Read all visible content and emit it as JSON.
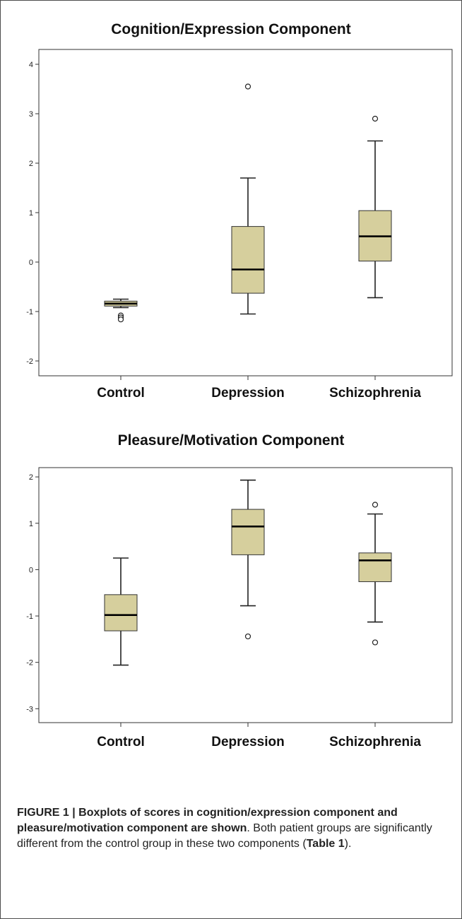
{
  "chart_data": [
    {
      "type": "box",
      "title": "Cognition/Expression Component",
      "xlabel": "",
      "ylabel": "",
      "ylim": [
        -2.3,
        4.3
      ],
      "yticks": [
        -2,
        -1,
        0,
        1,
        2,
        3,
        4
      ],
      "ytick_labels": [
        "-2",
        "-1",
        "0",
        "1",
        "2",
        "3",
        "4"
      ],
      "categories": [
        "Control",
        "Depression",
        "Schizophrenia"
      ],
      "box_color": "#d6cf9d",
      "boxes": [
        {
          "category": "Control",
          "whisker_low": -0.92,
          "q1": -0.89,
          "median": -0.84,
          "q3": -0.79,
          "whisker_high": -0.75,
          "outliers": [
            -1.08,
            -1.12,
            -1.16
          ]
        },
        {
          "category": "Depression",
          "whisker_low": -1.05,
          "q1": -0.63,
          "median": -0.15,
          "q3": 0.72,
          "whisker_high": 1.7,
          "outliers": [
            3.55
          ]
        },
        {
          "category": "Schizophrenia",
          "whisker_low": -0.72,
          "q1": 0.02,
          "median": 0.52,
          "q3": 1.04,
          "whisker_high": 2.45,
          "outliers": [
            2.9
          ]
        }
      ]
    },
    {
      "type": "box",
      "title": "Pleasure/Motivation Component",
      "xlabel": "",
      "ylabel": "",
      "ylim": [
        -3.3,
        2.2
      ],
      "yticks": [
        -3,
        -2,
        -1,
        0,
        1,
        2
      ],
      "ytick_labels": [
        "-3",
        "-2",
        "-1",
        "0",
        "1",
        "2"
      ],
      "categories": [
        "Control",
        "Depression",
        "Schizophrenia"
      ],
      "box_color": "#d6cf9d",
      "boxes": [
        {
          "category": "Control",
          "whisker_low": -2.06,
          "q1": -1.32,
          "median": -0.98,
          "q3": -0.54,
          "whisker_high": 0.25,
          "outliers": []
        },
        {
          "category": "Depression",
          "whisker_low": -0.78,
          "q1": 0.32,
          "median": 0.93,
          "q3": 1.3,
          "whisker_high": 1.93,
          "outliers": [
            -1.44
          ]
        },
        {
          "category": "Schizophrenia",
          "whisker_low": -1.13,
          "q1": -0.26,
          "median": 0.2,
          "q3": 0.36,
          "whisker_high": 1.2,
          "outliers": [
            1.4,
            -1.57
          ]
        }
      ]
    }
  ],
  "caption": {
    "title": "FIGURE 1 | Boxplots of scores in cognition/expression component and pleasure/motivation component are shown",
    "text_before": ". Both patient groups are significantly different from the control group in these two components (",
    "ref": "Table 1",
    "text_after": ")."
  }
}
